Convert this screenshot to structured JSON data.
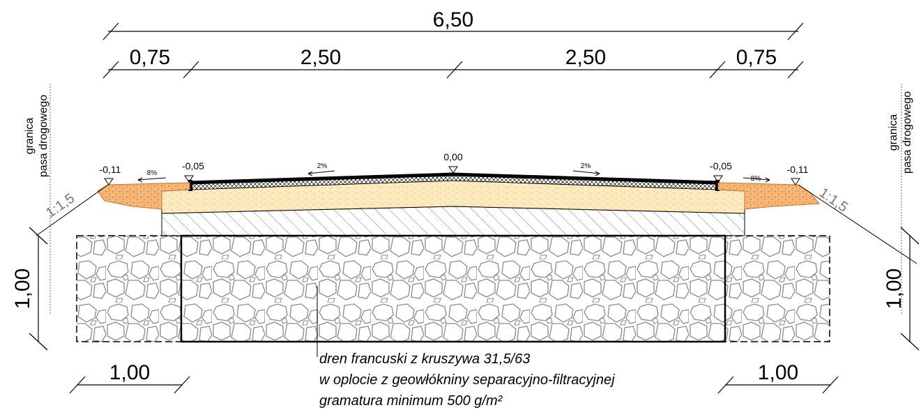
{
  "dimensions": {
    "total_width": "6,50",
    "shoulder_left": "0,75",
    "lane_left": "2,50",
    "lane_right": "2,50",
    "shoulder_right": "0,75",
    "drain_depth_left": "1,00",
    "drain_depth_right": "1,00",
    "drain_side_left": "1,00",
    "drain_side_right": "1,00"
  },
  "elevations": {
    "shoulder_edge_left": "-0,11",
    "pavement_edge_left": "-0,05",
    "crown": "0,00",
    "pavement_edge_right": "-0,05",
    "shoulder_edge_right": "-0,11"
  },
  "slopes": {
    "shoulder_left": "8%",
    "lane_left": "2%",
    "lane_right": "2%",
    "shoulder_right": "8%",
    "embankment_left": "1:1,5",
    "embankment_right": "1:1,5"
  },
  "labels": {
    "boundary_left_line1": "granica",
    "boundary_left_line2": "pasa drogowego",
    "boundary_right_line1": "granica",
    "boundary_right_line2": "pasa drogowego"
  },
  "note": {
    "line1": "dren francuski z kruszywa 31,5/63",
    "line2": "w oplocie z geowłókniny separacyjno-filtracyjnej",
    "line3": "gramatura minimum 500 g/m²"
  },
  "colors": {
    "shoulder_fill": "#f0a860",
    "subbase_fill": "#fdebc0",
    "asphalt": "#000000",
    "stone_outline": "#8a8a8a"
  }
}
